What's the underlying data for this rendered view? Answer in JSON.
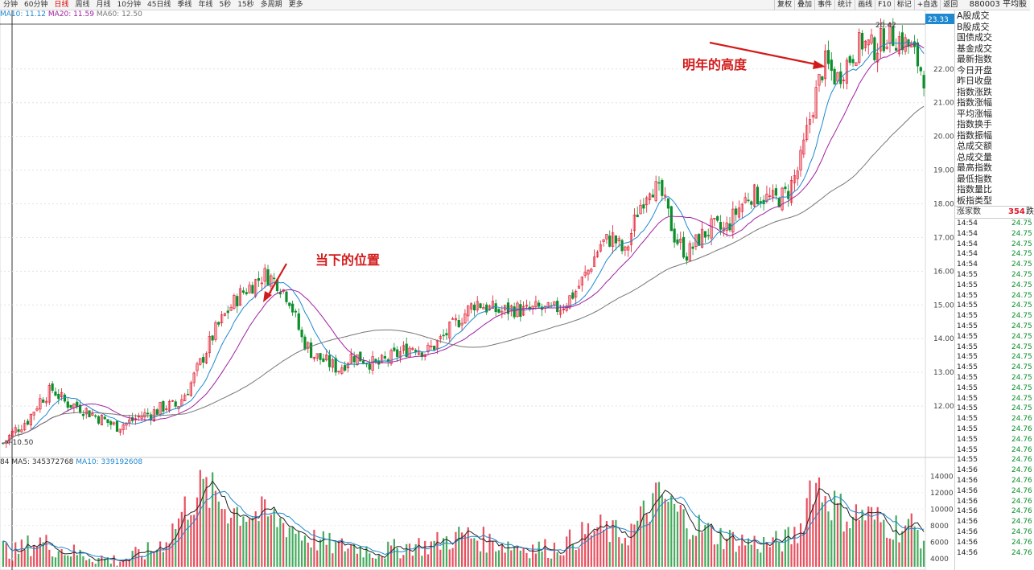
{
  "toolbar": {
    "periods": [
      "分钟",
      "60分钟",
      "日线",
      "周线",
      "月线",
      "10分钟",
      "45日线",
      "季线",
      "年线",
      "5秒",
      "15秒",
      "多周期",
      "更多"
    ],
    "active_period": "日线",
    "tools": [
      "复权",
      "叠加",
      "事件",
      "统计",
      "画线",
      "F10",
      "标记",
      "+自选",
      "返回"
    ],
    "stock": "880003 平均股"
  },
  "ma_legend": [
    {
      "label": "MA10: 11.12",
      "color": "#1e88d0"
    },
    {
      "label": "MA20: 11.59",
      "color": "#a020a0"
    },
    {
      "label": "MA60: 12.50",
      "color": "#777777"
    }
  ],
  "vol_legend": [
    {
      "label": "84",
      "color": "#333333"
    },
    {
      "label": "MA5: 345372768",
      "color": "#333333"
    },
    {
      "label": "MA10: 339192608",
      "color": "#1e88d0"
    }
  ],
  "annotations": {
    "current": "当下的位置",
    "next_year": "明年的高度"
  },
  "side_panel": {
    "fields": [
      "A股成交",
      "B股成交",
      "国债成交",
      "基金成交",
      "最新指数",
      "今日开盘",
      "昨日收盘",
      "指数涨跌",
      "指数涨幅",
      "平均涨幅",
      "指数换手",
      "指数振幅",
      "总成交额",
      "总成交量",
      "最高指数",
      "最低指数",
      "指数量比",
      "板指类型"
    ],
    "up_count_label": "涨家数",
    "up_count": "354",
    "down_label": "跌",
    "ticks": [
      {
        "t": "14:54",
        "p": "24.75"
      },
      {
        "t": "14:54",
        "p": "24.75"
      },
      {
        "t": "14:54",
        "p": "24.75"
      },
      {
        "t": "14:54",
        "p": "24.75"
      },
      {
        "t": "14:54",
        "p": "24.75"
      },
      {
        "t": "14:55",
        "p": "24.75"
      },
      {
        "t": "14:55",
        "p": "24.75"
      },
      {
        "t": "14:55",
        "p": "24.75"
      },
      {
        "t": "14:55",
        "p": "24.75"
      },
      {
        "t": "14:55",
        "p": "24.75"
      },
      {
        "t": "14:55",
        "p": "24.75"
      },
      {
        "t": "14:55",
        "p": "24.75"
      },
      {
        "t": "14:55",
        "p": "24.75"
      },
      {
        "t": "14:55",
        "p": "24.75"
      },
      {
        "t": "14:55",
        "p": "24.75"
      },
      {
        "t": "14:55",
        "p": "24.75"
      },
      {
        "t": "14:55",
        "p": "24.75"
      },
      {
        "t": "14:55",
        "p": "24.75"
      },
      {
        "t": "14:55",
        "p": "24.75"
      },
      {
        "t": "14:55",
        "p": "24.76"
      },
      {
        "t": "14:55",
        "p": "24.76"
      },
      {
        "t": "14:55",
        "p": "24.76"
      },
      {
        "t": "14:55",
        "p": "24.76"
      },
      {
        "t": "14:55",
        "p": "24.76"
      },
      {
        "t": "14:56",
        "p": "24.76"
      },
      {
        "t": "14:56",
        "p": "24.76"
      },
      {
        "t": "14:56",
        "p": "24.76"
      },
      {
        "t": "14:56",
        "p": "24.76"
      },
      {
        "t": "14:56",
        "p": "24.76"
      },
      {
        "t": "14:56",
        "p": "24.76"
      },
      {
        "t": "14:56",
        "p": "24.76"
      },
      {
        "t": "14:56",
        "p": "24.76"
      },
      {
        "t": "14:56",
        "p": "24.76"
      }
    ]
  },
  "chart_data": [
    {
      "type": "candlestick",
      "ylim": [
        10.5,
        23.33
      ],
      "yticks": [
        12.0,
        13.0,
        14.0,
        15.0,
        16.0,
        17.0,
        18.0,
        19.0,
        20.0,
        21.0,
        22.0
      ],
      "high_label": "23.33",
      "peak_label": "20.42",
      "low_label": "10.50",
      "colors": {
        "up": "#e0162b",
        "down": "#0a8f2a",
        "ma10": "#1e88d0",
        "ma20": "#a020a0",
        "ma60": "#777777"
      },
      "closes": [
        10.9,
        11.3,
        11.6,
        12.2,
        12.5,
        12.1,
        12.0,
        11.8,
        11.6,
        11.4,
        11.5,
        11.7,
        11.8,
        12.0,
        12.0,
        12.6,
        13.4,
        14.2,
        14.8,
        15.3,
        15.6,
        15.9,
        15.7,
        15.2,
        14.0,
        13.5,
        13.3,
        13.1,
        13.5,
        13.4,
        13.2,
        13.4,
        13.6,
        13.8,
        13.6,
        13.9,
        14.3,
        14.7,
        15.1,
        14.9,
        14.8,
        14.9,
        14.8,
        14.9,
        14.8,
        15.0,
        15.4,
        16.0,
        16.8,
        17.0,
        16.5,
        17.8,
        18.6,
        18.2,
        17.0,
        16.5,
        17.0,
        17.3,
        17.2,
        17.8,
        18.3,
        18.2,
        18.1,
        18.3,
        19.1,
        20.8,
        22.2,
        21.7,
        22.3,
        22.8,
        22.6,
        23.0,
        22.9,
        22.6,
        21.8
      ]
    },
    {
      "type": "bar",
      "ylim": [
        3000,
        15000
      ],
      "yticks": [
        4000,
        6000,
        8000,
        10000,
        12000,
        14000
      ],
      "volume": [
        5200,
        4800,
        5600,
        6100,
        5400,
        5000,
        4600,
        4300,
        4000,
        3800,
        4100,
        4500,
        5000,
        6200,
        8500,
        11000,
        12500,
        11500,
        10200,
        9800,
        9500,
        9200,
        8700,
        8000,
        7000,
        6300,
        5800,
        5400,
        5600,
        5200,
        4800,
        5000,
        5300,
        5700,
        5500,
        6000,
        6400,
        6900,
        6600,
        6100,
        5800,
        5600,
        5400,
        5300,
        5200,
        5600,
        6500,
        7200,
        7600,
        7100,
        6800,
        8200,
        10500,
        11500,
        9800,
        8600,
        7800,
        7000,
        6600,
        6200,
        6000,
        5800,
        5900,
        6300,
        7200,
        13800,
        12000,
        10200,
        9000,
        9500,
        8800,
        8200,
        7800,
        8000,
        6500
      ]
    }
  ]
}
